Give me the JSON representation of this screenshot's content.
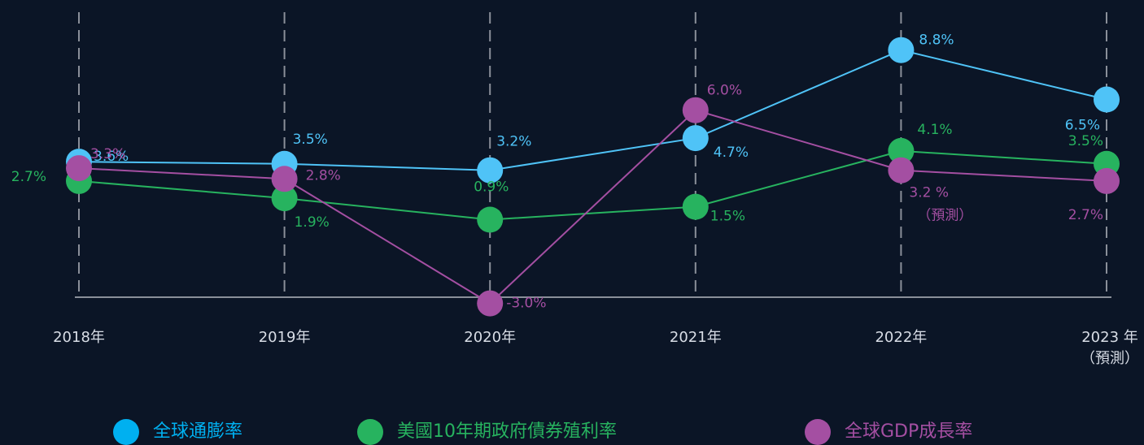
{
  "chart_data": {
    "type": "line",
    "categories": [
      "2018年",
      "2019年",
      "2020年",
      "2021年",
      "2022年",
      "2023 年"
    ],
    "category_notes": [
      null,
      null,
      null,
      null,
      null,
      "（預測）"
    ],
    "ylim": [
      -4,
      10
    ],
    "series": [
      {
        "name": "全球通膨率",
        "color": "#4fc3f7",
        "legend_color": "#00b0f0",
        "values": [
          3.6,
          3.5,
          3.2,
          4.7,
          8.8,
          6.5
        ],
        "value_labels": [
          "3.6%",
          "3.5%",
          "3.2%",
          "4.7%",
          "8.8%",
          "6.5%"
        ]
      },
      {
        "name": "美國10年期政府債券殖利率",
        "color": "#27b35f",
        "legend_color": "#27b35f",
        "values": [
          2.7,
          1.9,
          0.9,
          1.5,
          4.1,
          3.5
        ],
        "value_labels": [
          "2.7%",
          "1.9%",
          "0.9%",
          "1.5%",
          "4.1%",
          "3.5%"
        ]
      },
      {
        "name": "全球GDP成長率",
        "color": "#a44fa2",
        "legend_color": "#a44fa2",
        "values": [
          3.3,
          2.8,
          -3.0,
          6.0,
          3.2,
          2.7
        ],
        "value_labels": [
          "3.3%",
          "2.8%",
          "-3.0%",
          "6.0%",
          "3.2 %",
          "2.7%"
        ]
      }
    ],
    "annotations": [
      {
        "text": "（預測）"
      }
    ]
  }
}
